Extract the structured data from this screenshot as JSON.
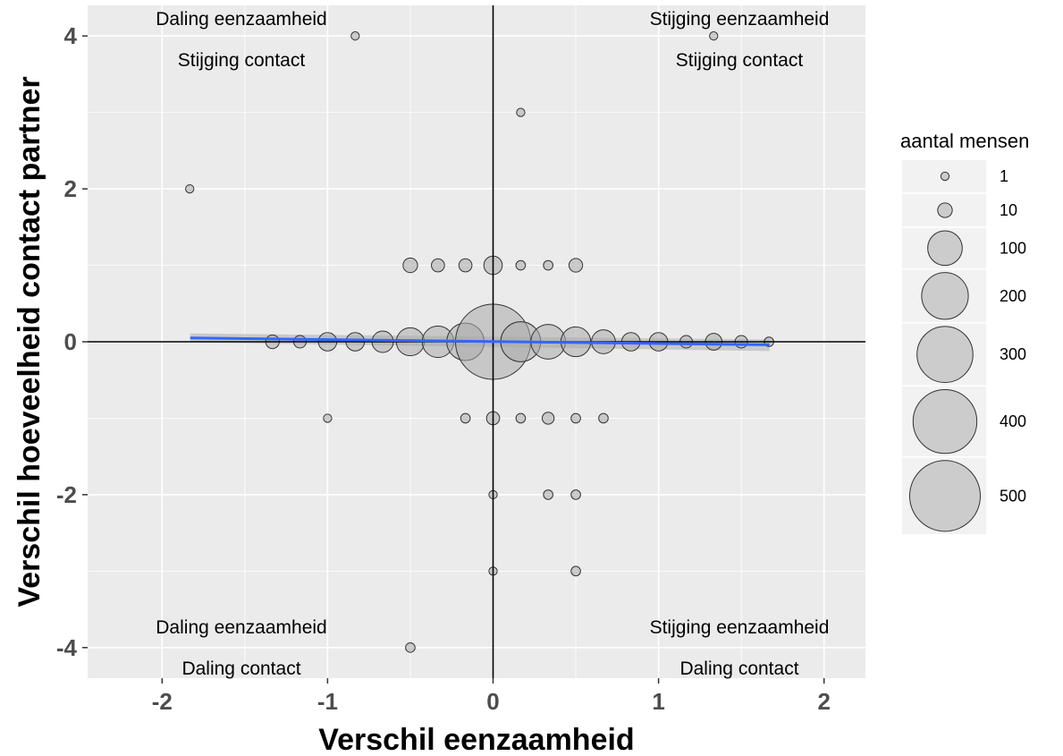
{
  "chart_data": {
    "type": "scatter",
    "xlabel": "Verschil eenzaamheid",
    "ylabel": "Verschil hoeveelheid contact partner",
    "xlim": [
      -2.45,
      2.25
    ],
    "ylim": [
      -4.4,
      4.4
    ],
    "x_ticks": [
      -2,
      -1,
      0,
      1,
      2
    ],
    "x_tick_labels": [
      "-2",
      "-1",
      "0",
      "1",
      "2"
    ],
    "y_ticks": [
      -4,
      -2,
      0,
      2,
      4
    ],
    "y_tick_labels": [
      "-4",
      "-2",
      "0",
      "2",
      "4"
    ],
    "grid": true,
    "colors": {
      "panel": "#ebebeb",
      "grid": "#ffffff",
      "point_fill": "#a9a9a9",
      "point_stroke": "#333333",
      "trend": "#3366ff",
      "ribbon": "#bdbdbd",
      "reference_line": "#000000",
      "legend_bg": "#f2f2f2",
      "legend_key_fill": "#cccccc"
    },
    "reference_lines": {
      "x": 0,
      "y": 0
    },
    "trend_line": {
      "x": [
        -1.83,
        1.67
      ],
      "y": [
        0.05,
        -0.04
      ]
    },
    "quadrant_labels": [
      {
        "id": "tl1",
        "text": "Daling eenzaamheid"
      },
      {
        "id": "tl2",
        "text": "Stijging contact"
      },
      {
        "id": "tr1",
        "text": "Stijging eenzaamheid"
      },
      {
        "id": "tr2",
        "text": "Stijging contact"
      },
      {
        "id": "bl1",
        "text": "Daling eenzaamheid"
      },
      {
        "id": "bl2",
        "text": "Daling contact"
      },
      {
        "id": "br1",
        "text": "Stijging eenzaamheid"
      },
      {
        "id": "br2",
        "text": "Daling contact"
      }
    ],
    "legend": {
      "title": "aantal mensen",
      "placement": "right",
      "entries": [
        {
          "label": "1",
          "value": 1
        },
        {
          "label": "10",
          "value": 10
        },
        {
          "label": "100",
          "value": 100
        },
        {
          "label": "200",
          "value": 200
        },
        {
          "label": "300",
          "value": 300
        },
        {
          "label": "400",
          "value": 400
        },
        {
          "label": "500",
          "value": 500
        }
      ]
    },
    "points": [
      {
        "x": -0.833,
        "y": 4,
        "n": 1
      },
      {
        "x": 1.333,
        "y": 4,
        "n": 1
      },
      {
        "x": 0.167,
        "y": 3,
        "n": 1
      },
      {
        "x": -1.833,
        "y": 2,
        "n": 1
      },
      {
        "x": -0.5,
        "y": 1,
        "n": 10
      },
      {
        "x": -0.333,
        "y": 1,
        "n": 7
      },
      {
        "x": -0.167,
        "y": 1,
        "n": 7
      },
      {
        "x": 0,
        "y": 1,
        "n": 20
      },
      {
        "x": 0.167,
        "y": 1,
        "n": 2
      },
      {
        "x": 0.333,
        "y": 1,
        "n": 2
      },
      {
        "x": 0.5,
        "y": 1,
        "n": 8
      },
      {
        "x": -1.333,
        "y": 0,
        "n": 8
      },
      {
        "x": -1.167,
        "y": 0,
        "n": 6
      },
      {
        "x": -1,
        "y": 0,
        "n": 20
      },
      {
        "x": -0.833,
        "y": 0,
        "n": 20
      },
      {
        "x": -0.667,
        "y": 0,
        "n": 30
      },
      {
        "x": -0.5,
        "y": 0,
        "n": 60
      },
      {
        "x": -0.333,
        "y": 0,
        "n": 80
      },
      {
        "x": -0.167,
        "y": 0,
        "n": 120
      },
      {
        "x": 0,
        "y": 0,
        "n": 570
      },
      {
        "x": 0.167,
        "y": 0,
        "n": 140
      },
      {
        "x": 0.333,
        "y": 0,
        "n": 100
      },
      {
        "x": 0.5,
        "y": 0,
        "n": 70
      },
      {
        "x": 0.667,
        "y": 0,
        "n": 40
      },
      {
        "x": 0.833,
        "y": 0,
        "n": 20
      },
      {
        "x": 1,
        "y": 0,
        "n": 20
      },
      {
        "x": 1.167,
        "y": 0,
        "n": 6
      },
      {
        "x": 1.333,
        "y": 0,
        "n": 15
      },
      {
        "x": 1.5,
        "y": 0,
        "n": 6
      },
      {
        "x": 1.667,
        "y": 0,
        "n": 2
      },
      {
        "x": -1,
        "y": -1,
        "n": 1
      },
      {
        "x": -0.167,
        "y": -1,
        "n": 2
      },
      {
        "x": 0,
        "y": -1,
        "n": 7
      },
      {
        "x": 0.167,
        "y": -1,
        "n": 2
      },
      {
        "x": 0.333,
        "y": -1,
        "n": 5
      },
      {
        "x": 0.5,
        "y": -1,
        "n": 2
      },
      {
        "x": 0.667,
        "y": -1,
        "n": 2
      },
      {
        "x": 0,
        "y": -2,
        "n": 1
      },
      {
        "x": 0.333,
        "y": -2,
        "n": 2
      },
      {
        "x": 0.5,
        "y": -2,
        "n": 2
      },
      {
        "x": 0,
        "y": -3,
        "n": 1
      },
      {
        "x": 0.5,
        "y": -3,
        "n": 2
      },
      {
        "x": -0.5,
        "y": -4,
        "n": 2
      }
    ]
  }
}
